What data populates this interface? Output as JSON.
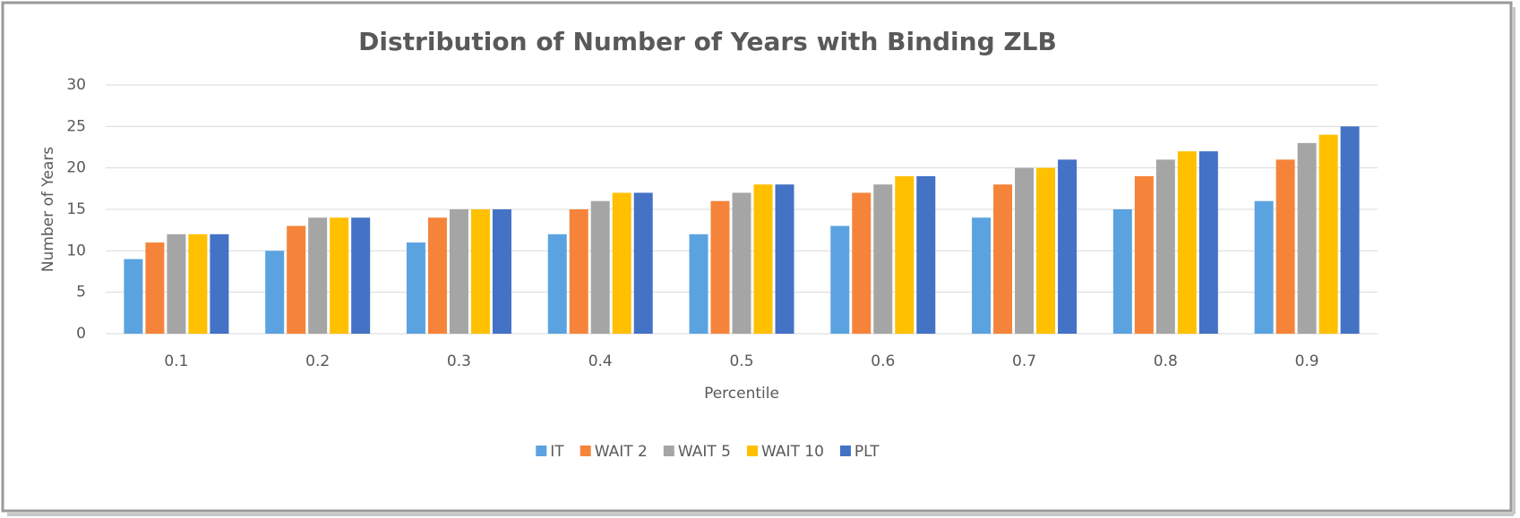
{
  "chart_data": {
    "type": "bar",
    "title": "Distribution of Number of Years with Binding ZLB",
    "x_label": "Percentile",
    "y_label": "Number  of Years",
    "categories": [
      "0.1",
      "0.2",
      "0.3",
      "0.4",
      "0.5",
      "0.6",
      "0.7",
      "0.8",
      "0.9"
    ],
    "series": [
      {
        "name": "IT",
        "color": "#5ba3e0",
        "values": [
          9,
          10,
          11,
          12,
          12,
          13,
          14,
          15,
          16
        ]
      },
      {
        "name": "WAIT 2",
        "color": "#f5843a",
        "values": [
          11,
          13,
          14,
          15,
          16,
          17,
          18,
          19,
          21
        ]
      },
      {
        "name": "WAIT 5",
        "color": "#a5a5a5",
        "values": [
          12,
          14,
          15,
          16,
          17,
          18,
          20,
          21,
          23
        ]
      },
      {
        "name": "WAIT 10",
        "color": "#ffc000",
        "values": [
          12,
          14,
          15,
          17,
          18,
          19,
          20,
          22,
          24
        ]
      },
      {
        "name": "PLT",
        "color": "#4472c4",
        "values": [
          12,
          14,
          15,
          17,
          18,
          19,
          21,
          22,
          25
        ]
      }
    ],
    "ylim": [
      0,
      30
    ],
    "yticks": [
      0,
      5,
      10,
      15,
      20,
      25,
      30
    ],
    "grid": true,
    "legend": "bottom"
  }
}
